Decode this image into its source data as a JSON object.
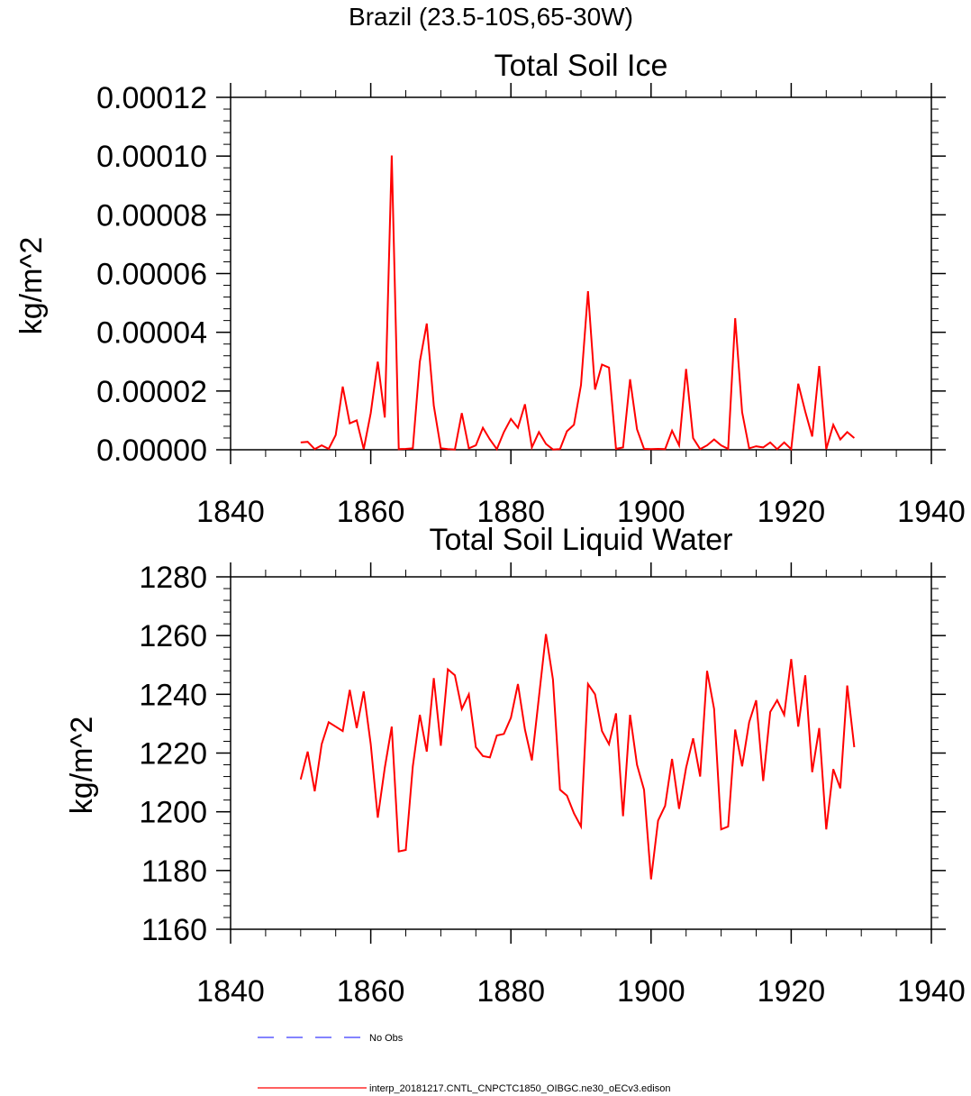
{
  "figure": {
    "suptitle": "Brazil (23.5-10S,65-30W)"
  },
  "colors": {
    "series": "#ff0000",
    "obs": "#3b3bff",
    "axis": "#000000"
  },
  "legend": {
    "items": [
      {
        "label": "No Obs",
        "style": "dashed",
        "color": "#3b3bff"
      },
      {
        "label": "interp_20181217.CNTL_CNPCTC1850_OIBGC.ne30_oECv3.edison",
        "style": "solid",
        "color": "#ff0000"
      }
    ]
  },
  "chart_data": [
    {
      "type": "line",
      "title": "Total Soil Ice",
      "xlabel": "",
      "ylabel": "kg/m^2",
      "xlim": [
        1840,
        1940
      ],
      "ylim": [
        0,
        0.00012
      ],
      "xticks": [
        1840,
        1860,
        1880,
        1900,
        1920,
        1940
      ],
      "xtick_labels": [
        "1840",
        "1860",
        "1880",
        "1900",
        "1920",
        "1940"
      ],
      "yticks": [
        0,
        2e-05,
        4e-05,
        6e-05,
        8e-05,
        0.0001,
        0.00012
      ],
      "ytick_labels": [
        "0.00000",
        "0.00002",
        "0.00004",
        "0.00006",
        "0.00008",
        "0.00010",
        "0.00012"
      ],
      "x_minor_step": 5,
      "y_minor_step": 4e-06,
      "grid": false,
      "series": [
        {
          "name": "interp_20181217.CNTL_CNPCTC1850_OIBGC.ne30_oECv3.edison",
          "x": [
            1850,
            1851,
            1852,
            1853,
            1854,
            1855,
            1856,
            1857,
            1858,
            1859,
            1860,
            1861,
            1862,
            1863,
            1864,
            1865,
            1866,
            1867,
            1868,
            1869,
            1870,
            1871,
            1872,
            1873,
            1874,
            1875,
            1876,
            1877,
            1878,
            1879,
            1880,
            1881,
            1882,
            1883,
            1884,
            1885,
            1886,
            1887,
            1888,
            1889,
            1890,
            1891,
            1892,
            1893,
            1894,
            1895,
            1896,
            1897,
            1898,
            1899,
            1900,
            1901,
            1902,
            1903,
            1904,
            1905,
            1906,
            1907,
            1908,
            1909,
            1910,
            1911,
            1912,
            1913,
            1914,
            1915,
            1916,
            1917,
            1918,
            1919,
            1920,
            1921,
            1922,
            1923,
            1924,
            1925,
            1926,
            1927,
            1928,
            1929
          ],
          "values": [
            2.5e-06,
            2.7e-06,
            2e-07,
            1.5e-06,
            3e-07,
            5e-06,
            2.15e-05,
            9e-06,
            1e-05,
            2e-07,
            1.25e-05,
            3e-05,
            1.1e-05,
            0.0001002,
            2e-07,
            3e-07,
            5e-07,
            3e-05,
            4.3e-05,
            1.5e-05,
            5e-07,
            2e-07,
            1e-07,
            1.25e-05,
            5e-07,
            1.5e-06,
            7.5e-06,
            3.5e-06,
            2e-07,
            6e-06,
            1.05e-05,
            7.5e-06,
            1.55e-05,
            8e-07,
            6e-06,
            2e-06,
            1e-07,
            2e-07,
            6.3e-06,
            8.5e-06,
            2.2e-05,
            5.4e-05,
            2.05e-05,
            2.9e-05,
            2.8e-05,
            3e-07,
            8e-07,
            2.4e-05,
            7e-06,
            3e-07,
            2e-07,
            3e-07,
            2e-07,
            6.5e-06,
            1.5e-06,
            2.75e-05,
            4e-06,
            2e-07,
            1.5e-06,
            3.5e-06,
            1.5e-06,
            3e-07,
            4.48e-05,
            1.28e-05,
            5e-07,
            1.2e-06,
            8e-07,
            2.5e-06,
            2e-07,
            2.5e-06,
            2e-07,
            2.25e-05,
            1.3e-05,
            4.5e-06,
            2.85e-05,
            2e-07,
            8.5e-06,
            3.5e-06,
            6e-06,
            4e-06
          ]
        }
      ]
    },
    {
      "type": "line",
      "title": "Total Soil Liquid Water",
      "xlabel": "",
      "ylabel": "kg/m^2",
      "xlim": [
        1840,
        1940
      ],
      "ylim": [
        1160,
        1280
      ],
      "xticks": [
        1840,
        1860,
        1880,
        1900,
        1920,
        1940
      ],
      "xtick_labels": [
        "1840",
        "1860",
        "1880",
        "1900",
        "1920",
        "1940"
      ],
      "yticks": [
        1160,
        1180,
        1200,
        1220,
        1240,
        1260,
        1280
      ],
      "ytick_labels": [
        "1160",
        "1180",
        "1200",
        "1220",
        "1240",
        "1260",
        "1280"
      ],
      "x_minor_step": 5,
      "y_minor_step": 4,
      "grid": false,
      "series": [
        {
          "name": "interp_20181217.CNTL_CNPCTC1850_OIBGC.ne30_oECv3.edison",
          "x": [
            1850,
            1851,
            1852,
            1853,
            1854,
            1855,
            1856,
            1857,
            1858,
            1859,
            1860,
            1861,
            1862,
            1863,
            1864,
            1865,
            1866,
            1867,
            1868,
            1869,
            1870,
            1871,
            1872,
            1873,
            1874,
            1875,
            1876,
            1877,
            1878,
            1879,
            1880,
            1881,
            1882,
            1883,
            1884,
            1885,
            1886,
            1887,
            1888,
            1889,
            1890,
            1891,
            1892,
            1893,
            1894,
            1895,
            1896,
            1897,
            1898,
            1899,
            1900,
            1901,
            1902,
            1903,
            1904,
            1905,
            1906,
            1907,
            1908,
            1909,
            1910,
            1911,
            1912,
            1913,
            1914,
            1915,
            1916,
            1917,
            1918,
            1919,
            1920,
            1921,
            1922,
            1923,
            1924,
            1925,
            1926,
            1927,
            1928,
            1929
          ],
          "values": [
            1211,
            1220.5,
            1207,
            1223,
            1230.5,
            1229,
            1227.5,
            1241.5,
            1228.5,
            1241,
            1223,
            1198,
            1215,
            1229,
            1186.5,
            1187,
            1215.5,
            1233,
            1220.5,
            1245.5,
            1222.5,
            1248.5,
            1246.5,
            1235,
            1240,
            1222,
            1219,
            1218.5,
            1226,
            1226.5,
            1232,
            1243.5,
            1228,
            1217.5,
            1239,
            1260.5,
            1245,
            1207.5,
            1205.5,
            1199.5,
            1195,
            1243.5,
            1240,
            1227.5,
            1223,
            1233.5,
            1198.5,
            1233,
            1216,
            1207.5,
            1177,
            1197,
            1202,
            1218,
            1201,
            1215,
            1225,
            1212,
            1248,
            1235,
            1194,
            1195,
            1228,
            1215.5,
            1230.5,
            1238,
            1210.5,
            1234,
            1238,
            1233,
            1252,
            1229,
            1246.5,
            1213.5,
            1228.5,
            1194,
            1214.5,
            1208,
            1243,
            1222
          ]
        }
      ]
    }
  ]
}
